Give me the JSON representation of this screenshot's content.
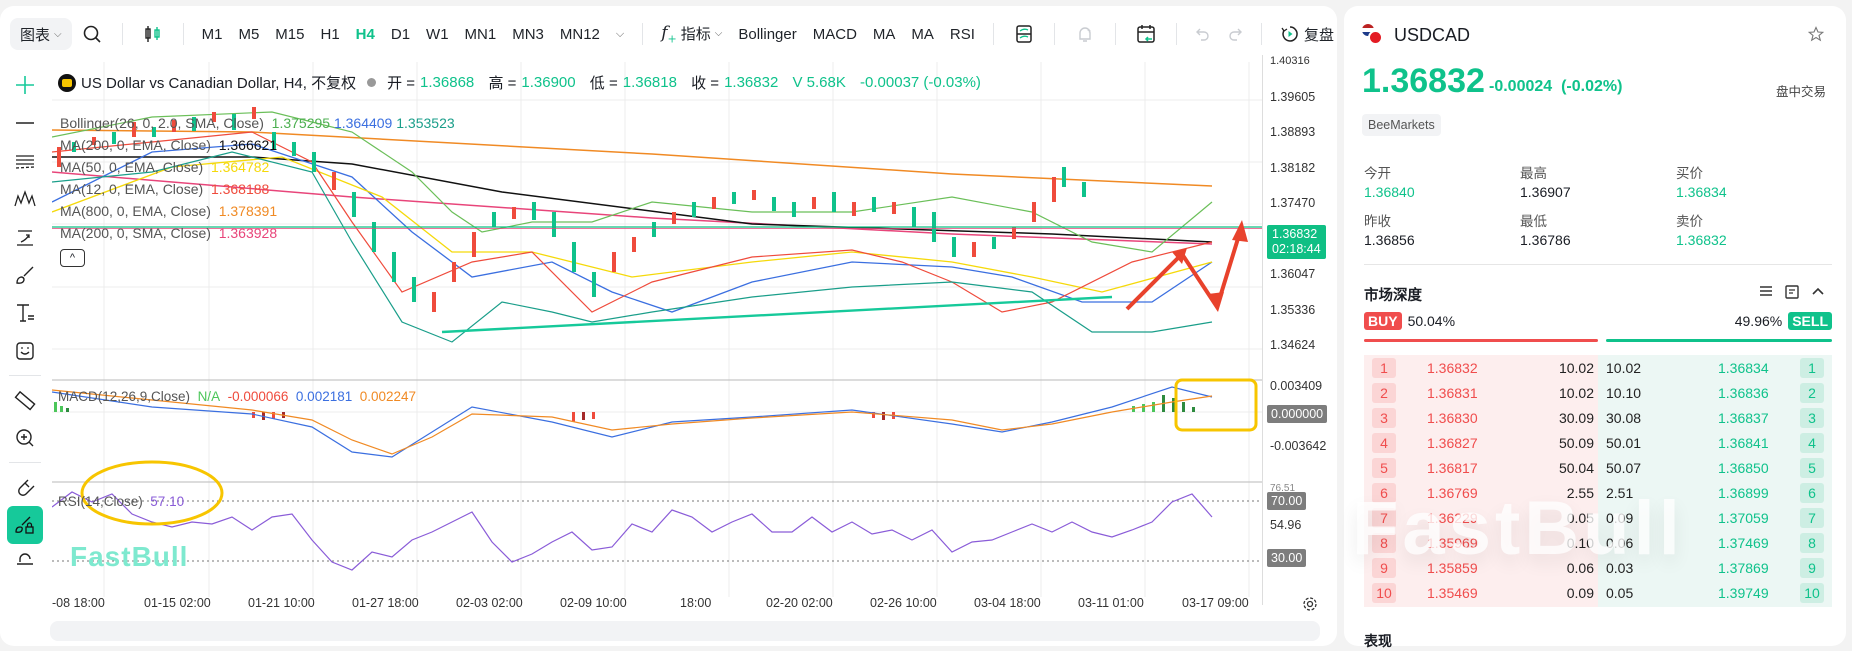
{
  "toolbar": {
    "chart_menu": "图表",
    "timeframes": [
      "M1",
      "M5",
      "M15",
      "H1",
      "H4",
      "D1",
      "W1",
      "MN1",
      "MN3",
      "MN12"
    ],
    "active_timeframe": "H4",
    "indicators_menu": "指标",
    "quick_indicators": [
      "Bollinger",
      "MACD",
      "MA",
      "MA",
      "RSI"
    ],
    "replay_label": "复盘"
  },
  "chart": {
    "title": "US Dollar vs Canadian Dollar, H4, 不复权",
    "ohlc": {
      "open_label": "开 =",
      "open": "1.36868",
      "high_label": "高 =",
      "high": "1.36900",
      "low_label": "低 =",
      "low": "1.36818",
      "close_label": "收 =",
      "close": "1.36832",
      "volume": "V 5.68K",
      "change": "-0.00037 (-0.03%)"
    },
    "indicators": [
      {
        "label": "Bollinger(26, 0, 2.0, SMA, Close)",
        "values": [
          "1.375295",
          "1.364409",
          "1.353523"
        ],
        "colors": [
          "#4caf50",
          "#3b6fe0",
          "#1a9e8a"
        ]
      },
      {
        "label": "MA(200, 0, EMA, Close)",
        "values": [
          "1.366621"
        ],
        "colors": [
          "#111111"
        ]
      },
      {
        "label": "MA(50, 0, EMA, Close)",
        "values": [
          "1.364782"
        ],
        "colors": [
          "#f5d90a"
        ]
      },
      {
        "label": "MA(12, 0, EMA, Close)",
        "values": [
          "1.368188"
        ],
        "colors": [
          "#ef4b3c"
        ]
      },
      {
        "label": "MA(800, 0, EMA, Close)",
        "values": [
          "1.378391"
        ],
        "colors": [
          "#f08a24"
        ]
      },
      {
        "label": "MA(200, 0, SMA, Close)",
        "values": [
          "1.363928"
        ],
        "colors": [
          "#e8457a"
        ]
      }
    ],
    "macd": {
      "label": "MACD(12,26,9,Close)",
      "na": "N/A",
      "hist": "-0.000066",
      "macd": "0.002181",
      "signal": "0.002247"
    },
    "rsi": {
      "label": "RSI(14,Close)",
      "value": "57.10"
    },
    "watermark": "FastBull",
    "y_axis": [
      "1.40316",
      "1.39605",
      "1.38893",
      "1.38182",
      "1.37470",
      "1.36047",
      "1.35336",
      "1.34624"
    ],
    "current_price": "1.36832",
    "countdown": "02:18:44",
    "macd_axis": [
      "0.003409",
      "0.000000",
      "-0.003642"
    ],
    "rsi_axis": [
      "76.51",
      "70.00",
      "54.96",
      "30.00"
    ],
    "x_axis": [
      "-08 18:00",
      "01-15 02:00",
      "01-21 10:00",
      "01-27 18:00",
      "02-03 02:00",
      "02-09 10:00",
      "18:00",
      "02-20 02:00",
      "02-26 10:00",
      "03-04 18:00",
      "03-11 01:00",
      "03-17 09:00"
    ]
  },
  "quote": {
    "symbol": "USDCAD",
    "price": "1.36832",
    "change": "-0.00024",
    "change_pct": "(-0.02%)",
    "session": "盘中交易",
    "broker": "BeeMarkets",
    "stats": [
      {
        "label": "今开",
        "value": "1.36840",
        "green": true
      },
      {
        "label": "最高",
        "value": "1.36907",
        "green": false
      },
      {
        "label": "买价",
        "value": "1.36834",
        "green": true
      },
      {
        "label": "昨收",
        "value": "1.36856",
        "green": false
      },
      {
        "label": "最低",
        "value": "1.36786",
        "green": false
      },
      {
        "label": "卖价",
        "value": "1.36832",
        "green": true
      }
    ]
  },
  "depth": {
    "title": "市场深度",
    "buy_label": "BUY",
    "buy_pct": "50.04%",
    "sell_label": "SELL",
    "sell_pct": "49.96%",
    "bids": [
      {
        "n": "1",
        "price": "1.36832",
        "vol": "10.02"
      },
      {
        "n": "2",
        "price": "1.36831",
        "vol": "10.02"
      },
      {
        "n": "3",
        "price": "1.36830",
        "vol": "30.09"
      },
      {
        "n": "4",
        "price": "1.36827",
        "vol": "50.09"
      },
      {
        "n": "5",
        "price": "1.36817",
        "vol": "50.04"
      },
      {
        "n": "6",
        "price": "1.36769",
        "vol": "2.55"
      },
      {
        "n": "7",
        "price": "1.36229",
        "vol": "0.05"
      },
      {
        "n": "8",
        "price": "1.35969",
        "vol": "0.10"
      },
      {
        "n": "9",
        "price": "1.35859",
        "vol": "0.06"
      },
      {
        "n": "10",
        "price": "1.35469",
        "vol": "0.09"
      }
    ],
    "asks": [
      {
        "n": "1",
        "price": "1.36834",
        "vol": "10.02"
      },
      {
        "n": "2",
        "price": "1.36836",
        "vol": "10.10"
      },
      {
        "n": "3",
        "price": "1.36837",
        "vol": "30.08"
      },
      {
        "n": "4",
        "price": "1.36841",
        "vol": "50.01"
      },
      {
        "n": "5",
        "price": "1.36850",
        "vol": "50.07"
      },
      {
        "n": "6",
        "price": "1.36899",
        "vol": "2.51"
      },
      {
        "n": "7",
        "price": "1.37059",
        "vol": "0.09"
      },
      {
        "n": "8",
        "price": "1.37469",
        "vol": "0.06"
      },
      {
        "n": "9",
        "price": "1.37869",
        "vol": "0.03"
      },
      {
        "n": "10",
        "price": "1.39749",
        "vol": "0.05"
      }
    ]
  },
  "performance": {
    "title": "表现"
  },
  "colors": {
    "green": "#0fc28b",
    "red": "#f04d4d",
    "bid_bg": "#fdeeee",
    "ask_bg": "#ecf7f4"
  }
}
